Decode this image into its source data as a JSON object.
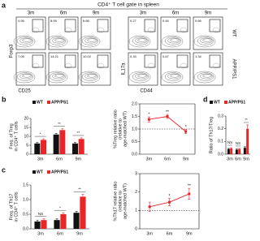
{
  "panel_a": {
    "label": "a",
    "title": "CD4⁺ T cell gate in spleen",
    "columns": [
      "3m",
      "6m",
      "9m"
    ],
    "rows": [
      "WT",
      "APP/PS1"
    ],
    "treg_axes": {
      "y": "Foxp3",
      "x": "CD25"
    },
    "th17_axes": {
      "y": "IL17a",
      "x": "CD44"
    },
    "treg_gates": [
      [
        "4.95",
        "8.05",
        "6.65"
      ],
      [
        "7.05",
        "14.21",
        "10.02"
      ]
    ],
    "th17_gates": [
      [
        "0.27",
        "0.44",
        "0.66"
      ],
      [
        "0.33",
        "0.67",
        "1.34"
      ]
    ]
  },
  "chart_data": [
    {
      "type": "bar",
      "panel_label": "b",
      "y_label": [
        "Freq. of Treg",
        "in CD4⁺ T cells"
      ],
      "categories": [
        "3m",
        "6m",
        "9m"
      ],
      "series": [
        {
          "name": "WT",
          "color": "#111111",
          "values": [
            6,
            11,
            6
          ],
          "errors": [
            0.5,
            0.6,
            0.5
          ]
        },
        {
          "name": "APP/PS1",
          "color": "#e8262a",
          "values": [
            8,
            13.5,
            8.5
          ],
          "errors": [
            0.6,
            0.7,
            0.6
          ]
        }
      ],
      "annotations": [
        "*",
        "**",
        "**"
      ],
      "ylim": [
        0,
        20
      ],
      "yticks": [
        0,
        5,
        10,
        15,
        20
      ]
    },
    {
      "type": "line",
      "y_label": [
        "%Treg relative ratio",
        "(relative to",
        "age-matched WT)"
      ],
      "categories": [
        "3m",
        "6m",
        "9m"
      ],
      "series": [
        {
          "name": "APP/PS1",
          "color": "#e8262a",
          "values": [
            1.38,
            1.5,
            0.9
          ],
          "errors": [
            0.1,
            0.08,
            0.08
          ]
        }
      ],
      "annotations": [
        "*",
        "**",
        "*"
      ],
      "reference_line": 1,
      "ylim": [
        0,
        2
      ],
      "yticks": [
        {
          "value": 0,
          "label": "0.0"
        },
        {
          "value": 0.5,
          "label": "0.5"
        },
        {
          "value": 1,
          "label": "1.0"
        },
        {
          "value": 1.5,
          "label": "1.5"
        },
        {
          "value": 2,
          "label": "2.0"
        }
      ]
    },
    {
      "type": "bar",
      "panel_label": "d",
      "y_label": [
        "Ratio of Th17/Treg"
      ],
      "categories": [
        "3m",
        "6m",
        "9m"
      ],
      "series": [
        {
          "name": "WT",
          "color": "#111111",
          "values": [
            0.04,
            0.035,
            0.05
          ],
          "errors": [
            0.005,
            0.005,
            0.008
          ]
        },
        {
          "name": "APP/PS1",
          "color": "#e8262a",
          "values": [
            0.045,
            0.04,
            0.2
          ],
          "errors": [
            0.006,
            0.005,
            0.03
          ]
        }
      ],
      "annotations": [
        "NS",
        "NS",
        "**"
      ],
      "ylim": [
        0,
        0.3
      ],
      "yticks": [
        {
          "value": 0,
          "label": "0.0"
        },
        0.1,
        0.2,
        0.3
      ]
    },
    {
      "type": "bar",
      "panel_label": "c",
      "y_label": [
        "Freq. of Th17",
        "in CD4⁺ T cells"
      ],
      "categories": [
        "3m",
        "6m",
        "9m"
      ],
      "series": [
        {
          "name": "WT",
          "color": "#111111",
          "values": [
            0.25,
            0.3,
            0.55
          ],
          "errors": [
            0.04,
            0.04,
            0.05
          ]
        },
        {
          "name": "APP/PS1",
          "color": "#e8262a",
          "values": [
            0.3,
            0.5,
            1.1
          ],
          "errors": [
            0.04,
            0.05,
            0.08
          ]
        }
      ],
      "annotations": [
        "NS",
        "*",
        "**"
      ],
      "ylim": [
        0,
        1.5
      ],
      "yticks": [
        {
          "value": 0,
          "label": "0.0"
        },
        {
          "value": 0.5,
          "label": "0.5"
        },
        {
          "value": 1,
          "label": "1.0"
        },
        {
          "value": 1.5,
          "label": "1.5"
        }
      ]
    },
    {
      "type": "line",
      "y_label": [
        "%Th17 relative ratio",
        "(relative to",
        "age-matched WT)"
      ],
      "categories": [
        "3m",
        "6m",
        "9m"
      ],
      "series": [
        {
          "name": "APP/PS1",
          "color": "#e8262a",
          "values": [
            1.2,
            1.45,
            1.9
          ],
          "errors": [
            0.25,
            0.2,
            0.3
          ]
        }
      ],
      "annotations": [
        null,
        "*",
        "**"
      ],
      "reference_line": 1,
      "ylim": [
        0,
        3
      ],
      "yticks": [
        0,
        1,
        2,
        3
      ]
    }
  ]
}
